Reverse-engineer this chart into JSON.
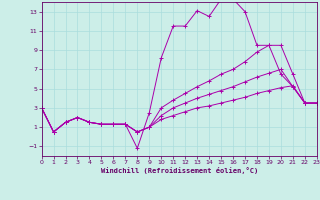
{
  "xlabel": "Windchill (Refroidissement éolien,°C)",
  "bg_color": "#cceee8",
  "grid_color": "#aadddd",
  "line_color": "#aa00aa",
  "xlim": [
    0,
    23
  ],
  "ylim": [
    -2,
    14
  ],
  "xticks": [
    0,
    1,
    2,
    3,
    4,
    5,
    6,
    7,
    8,
    9,
    10,
    11,
    12,
    13,
    14,
    15,
    16,
    17,
    18,
    19,
    20,
    21,
    22,
    23
  ],
  "yticks": [
    -1,
    1,
    3,
    5,
    7,
    9,
    11,
    13
  ],
  "line1_x": [
    0,
    1,
    2,
    3,
    4,
    5,
    6,
    7,
    8,
    9,
    10,
    11,
    12,
    13,
    14,
    15,
    16,
    17,
    18,
    19,
    20,
    21,
    22,
    23
  ],
  "line1_y": [
    3.0,
    0.5,
    1.5,
    2.0,
    1.5,
    1.3,
    1.3,
    1.3,
    -1.2,
    2.5,
    8.2,
    11.5,
    11.5,
    13.1,
    12.5,
    14.3,
    14.3,
    13.0,
    9.5,
    9.5,
    6.5,
    5.2,
    3.5,
    3.5
  ],
  "line2_x": [
    0,
    1,
    2,
    3,
    4,
    5,
    6,
    7,
    8,
    9,
    10,
    11,
    12,
    13,
    14,
    15,
    16,
    17,
    18,
    19,
    20,
    21,
    22,
    23
  ],
  "line2_y": [
    3.0,
    0.5,
    1.5,
    2.0,
    1.5,
    1.3,
    1.3,
    1.3,
    0.5,
    1.0,
    3.0,
    3.8,
    4.5,
    5.2,
    5.8,
    6.5,
    7.0,
    7.8,
    8.8,
    9.5,
    9.5,
    6.5,
    3.5,
    3.5
  ],
  "line3_x": [
    0,
    1,
    2,
    3,
    4,
    5,
    6,
    7,
    8,
    9,
    10,
    11,
    12,
    13,
    14,
    15,
    16,
    17,
    18,
    19,
    20,
    21,
    22,
    23
  ],
  "line3_y": [
    3.0,
    0.5,
    1.5,
    2.0,
    1.5,
    1.3,
    1.3,
    1.3,
    0.5,
    1.0,
    2.2,
    3.0,
    3.5,
    4.0,
    4.4,
    4.8,
    5.2,
    5.7,
    6.2,
    6.6,
    7.0,
    5.2,
    3.5,
    3.5
  ],
  "line4_x": [
    0,
    1,
    2,
    3,
    4,
    5,
    6,
    7,
    8,
    9,
    10,
    11,
    12,
    13,
    14,
    15,
    16,
    17,
    18,
    19,
    20,
    21,
    22,
    23
  ],
  "line4_y": [
    3.0,
    0.5,
    1.5,
    2.0,
    1.5,
    1.3,
    1.3,
    1.3,
    0.5,
    1.0,
    1.8,
    2.2,
    2.6,
    3.0,
    3.2,
    3.5,
    3.8,
    4.1,
    4.5,
    4.8,
    5.1,
    5.3,
    3.5,
    3.5
  ]
}
